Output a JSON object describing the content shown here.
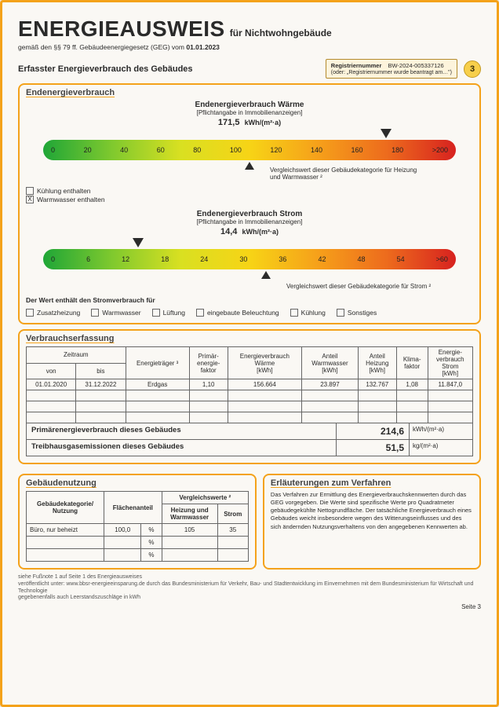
{
  "header": {
    "title_main": "ENERGIEAUSWEIS",
    "title_sub": "für Nichtwohngebäude",
    "subline_prefix": "gemäß den §§ 79 ff. Gebäudeenergiegesetz (GEG) vom ",
    "subline_date": "01.01.2023",
    "section_title": "Erfasster Energieverbrauch des Gebäudes",
    "reg_label": "Registriernummer",
    "reg_number": "BW-2024-005337126",
    "reg_alt": "(oder: „Registriernummer wurde beantragt am…\")",
    "page_badge": "3"
  },
  "ende_panel": {
    "title": "Endenergieverbrauch",
    "heat": {
      "title": "Endenergieverbrauch Wärme",
      "sub": "[Pflichtangabe in Immobilienanzeigen]",
      "value": "171,5",
      "unit": "kWh/(m²·a)",
      "ticks": [
        "0",
        "20",
        "40",
        "60",
        "80",
        "100",
        "120",
        "140",
        "160",
        "180",
        ">200"
      ],
      "gradient": [
        "#1fa637",
        "#7fc92e",
        "#d9e021",
        "#f7d416",
        "#f6a01a",
        "#ed6b1d",
        "#d7221f"
      ],
      "arrow_pct": 83,
      "comp_pct": 50,
      "comp_note": "Vergleichswert dieser Gebäudekategorie für Heizung und Warmwasser ²",
      "chk_cool": "Kühlung enthalten",
      "chk_ww": "Warmwasser enthalten",
      "chk_ww_mark": "X"
    },
    "elec": {
      "title": "Endenergieverbrauch Strom",
      "sub": "[Pflichtangabe in Immobilienanzeigen]",
      "value": "14,4",
      "unit": "kWh/(m²·a)",
      "ticks": [
        "0",
        "6",
        "12",
        "18",
        "24",
        "30",
        "36",
        "42",
        "48",
        "54",
        ">60"
      ],
      "gradient": [
        "#1fa637",
        "#7fc92e",
        "#d9e021",
        "#f7d416",
        "#f6a01a",
        "#ed6b1d",
        "#d7221f"
      ],
      "arrow_pct": 23,
      "comp_pct": 54,
      "comp_note": "Vergleichswert dieser Gebäudekategorie für Strom ²",
      "line": "Der Wert enthält den Stromverbrauch für",
      "cats": [
        "Zusatzheizung",
        "Warmwasser",
        "Lüftung",
        "eingebaute Beleuchtung",
        "Kühlung",
        "Sonstiges"
      ]
    }
  },
  "verbrauch": {
    "title": "Verbrauchserfassung",
    "cols": {
      "zeit": "Zeitraum",
      "von": "von",
      "bis": "bis",
      "trager": "Energieträger ³",
      "pef": "Primär-\nenergie-\nfaktor",
      "warme": "Energieverbrauch\nWärme\n[kWh]",
      "ww": "Anteil\nWarmwasser\n[kWh]",
      "heiz": "Anteil\nHeizung\n[kWh]",
      "klima": "Klima-\nfaktor",
      "strom": "Energie-\nverbrauch\nStrom\n[kWh]"
    },
    "rows": [
      {
        "von": "01.01.2020",
        "bis": "31.12.2022",
        "trager": "Erdgas",
        "pef": "1,10",
        "warme": "156.664",
        "ww": "23.897",
        "heiz": "132.767",
        "klima": "1,08",
        "strom": "11.847,0"
      }
    ],
    "blank_rows": 3,
    "sum1": {
      "lab": "Primärenergieverbrauch dieses Gebäudes",
      "val": "214,6",
      "unit": "kWh/(m²·a)"
    },
    "sum2": {
      "lab": "Treibhausgasemissionen dieses Gebäudes",
      "val": "51,5",
      "unit": "kg/(m²·a)"
    }
  },
  "nutzung": {
    "title": "Gebäudenutzung",
    "cols": {
      "kat": "Gebäudekategorie/\nNutzung",
      "fl": "Flächenanteil",
      "vw": "Vergleichswerte ²",
      "hw": "Heizung und\nWarmwasser",
      "st": "Strom"
    },
    "rows": [
      {
        "kat": "Büro, nur beheizt",
        "fl": "100,0",
        "u": "%",
        "hw": "105",
        "st": "35"
      }
    ],
    "empty_u": "%"
  },
  "erl": {
    "title": "Erläuterungen zum Verfahren",
    "text": "Das Verfahren zur Ermittlung des Energieverbrauchskennwerten durch das GEG vorgegeben. Die Werte sind spezifische Werte pro Quadratmeter gebäudegekühlte Nettogrundfläche. Der tatsächliche Energieverbrauch eines Gebäudes weicht insbesondere wegen des Witterungseinflusses und des sich ändernden Nutzungsverhaltens von den angegebenen Kennwerten ab."
  },
  "foot": {
    "l1": "siehe Fußnote 1 auf Seite 1 des Energieausweises",
    "l2": "veröffentlicht unter: www.bbsr-energieeinsparung.de durch das Bundesministerium für Verkehr, Bau- und Stadtentwicklung im Einvernehmen mit dem Bundesministerium für Wirtschaft und Technologie",
    "l3": "gegebenenfalls auch Leerstandszuschläge in kWh",
    "page": "Seite 3"
  }
}
